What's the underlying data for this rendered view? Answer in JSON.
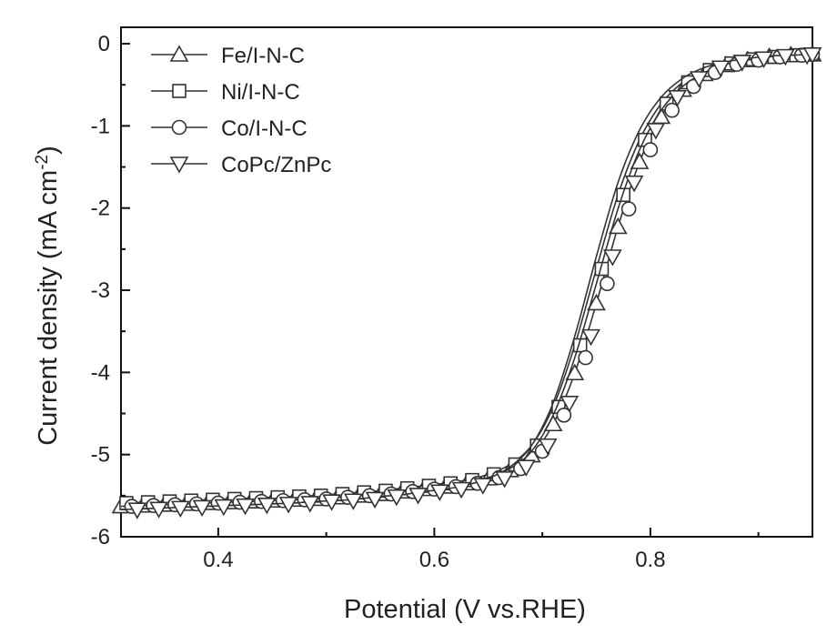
{
  "chart_data": {
    "type": "line",
    "title": "",
    "xlabel": "Potential (V vs.RHE)",
    "ylabel_main": "Current density (mA cm",
    "ylabel_sup": "-2",
    "ylabel_close": ")",
    "xlim": [
      0.31,
      0.95
    ],
    "ylim": [
      -6,
      0.2
    ],
    "xticks": [
      0.4,
      0.6,
      0.8
    ],
    "xtick_labels": [
      "0.4",
      "0.6",
      "0.8"
    ],
    "yticks": [
      0,
      -1,
      -2,
      -3,
      -4,
      -5,
      -6
    ],
    "ytick_labels": [
      "0",
      "-1",
      "-2",
      "-3",
      "-4",
      "-5",
      "-6"
    ],
    "grid": false,
    "legend_position": "top-left",
    "x": [
      0.31,
      0.33,
      0.35,
      0.37,
      0.39,
      0.41,
      0.43,
      0.45,
      0.47,
      0.49,
      0.51,
      0.53,
      0.55,
      0.57,
      0.59,
      0.61,
      0.63,
      0.65,
      0.67,
      0.69,
      0.71,
      0.73,
      0.75,
      0.77,
      0.79,
      0.81,
      0.83,
      0.85,
      0.87,
      0.89,
      0.91,
      0.93,
      0.95
    ],
    "series": [
      {
        "name": "Fe/I-N-C",
        "marker": "triangle-up",
        "halfwave": 0.7765,
        "values": [
          -5.63,
          -5.62,
          -5.61,
          -5.6,
          -5.59,
          -5.58,
          -5.57,
          -5.56,
          -5.55,
          -5.54,
          -5.52,
          -5.5,
          -5.48,
          -5.45,
          -5.42,
          -5.39,
          -5.35,
          -5.29,
          -5.19,
          -5.01,
          -4.63,
          -4.01,
          -3.16,
          -2.23,
          -1.44,
          -0.89,
          -0.56,
          -0.37,
          -0.26,
          -0.2,
          -0.16,
          -0.14,
          -0.13
        ]
      },
      {
        "name": "Ni/I-N-C",
        "marker": "square",
        "halfwave": 0.7695,
        "values": [
          -5.59,
          -5.58,
          -5.57,
          -5.56,
          -5.55,
          -5.54,
          -5.53,
          -5.52,
          -5.51,
          -5.5,
          -5.48,
          -5.46,
          -5.44,
          -5.41,
          -5.38,
          -5.35,
          -5.31,
          -5.24,
          -5.12,
          -4.89,
          -4.42,
          -3.67,
          -2.74,
          -1.84,
          -1.17,
          -0.73,
          -0.47,
          -0.32,
          -0.24,
          -0.19,
          -0.16,
          -0.14,
          -0.13
        ]
      },
      {
        "name": "Co/I-N-C",
        "marker": "circle",
        "halfwave": 0.7725,
        "values": [
          -5.63,
          -5.62,
          -5.61,
          -5.6,
          -5.59,
          -5.58,
          -5.57,
          -5.56,
          -5.55,
          -5.54,
          -5.52,
          -5.5,
          -5.48,
          -5.45,
          -5.42,
          -5.39,
          -5.35,
          -5.28,
          -5.17,
          -4.96,
          -4.52,
          -3.82,
          -2.92,
          -2.01,
          -1.29,
          -0.81,
          -0.52,
          -0.35,
          -0.25,
          -0.2,
          -0.16,
          -0.14,
          -0.13
        ]
      },
      {
        "name": "CoPc/ZnPc",
        "marker": "triangle-down",
        "halfwave": 0.7615,
        "values": [
          -5.67,
          -5.66,
          -5.65,
          -5.64,
          -5.63,
          -5.62,
          -5.61,
          -5.6,
          -5.59,
          -5.57,
          -5.56,
          -5.54,
          -5.51,
          -5.49,
          -5.45,
          -5.42,
          -5.37,
          -5.29,
          -5.15,
          -4.89,
          -4.37,
          -3.56,
          -2.59,
          -1.69,
          -1.05,
          -0.65,
          -0.42,
          -0.29,
          -0.22,
          -0.18,
          -0.15,
          -0.14,
          -0.13
        ]
      }
    ]
  }
}
